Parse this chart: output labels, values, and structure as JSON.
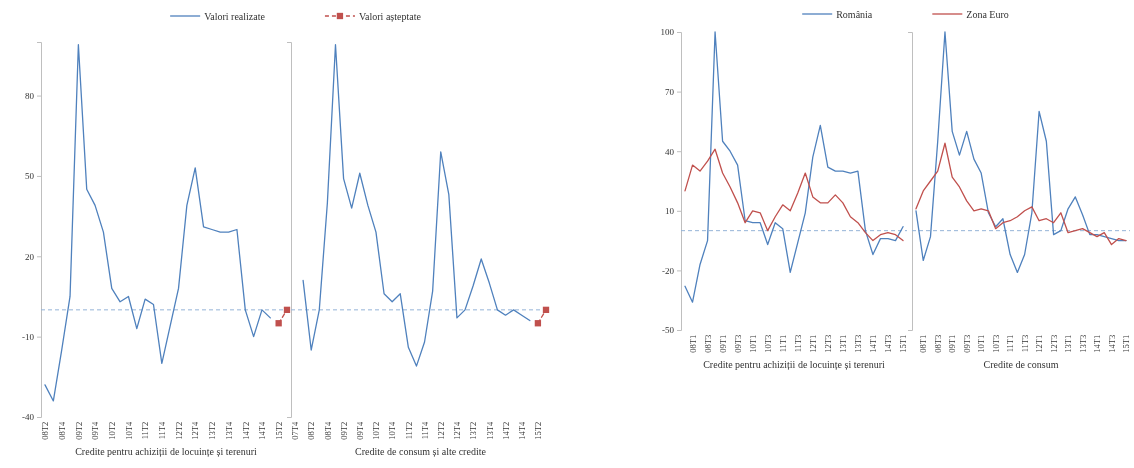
{
  "chart_data": [
    {
      "type": "line",
      "xlabel": "Credite pentru achiziții de locuințe și terenuri",
      "categories": [
        "08T2",
        null,
        "08T4",
        null,
        "09T2",
        null,
        "09T4",
        null,
        "10T2",
        null,
        "10T4",
        null,
        "11T2",
        null,
        "11T4",
        null,
        "12T2",
        null,
        "12T4",
        null,
        "13T2",
        null,
        "13T4",
        null,
        "14T2",
        null,
        "14T4",
        null,
        "15T2",
        null
      ],
      "ylim": [
        -40,
        100
      ],
      "yticks": [
        -40,
        -10,
        20,
        50,
        80
      ],
      "legend": "top",
      "ref_lines": [
        {
          "axis": "y",
          "value": 0,
          "color": "#95b3d7",
          "line_style": "dashed"
        }
      ],
      "series": [
        {
          "name": "Valori realizate",
          "color": "#4f81bd",
          "values": [
            -28,
            -34,
            -15,
            5,
            99,
            45,
            39,
            29,
            8,
            3,
            5,
            -7,
            4,
            2,
            -20,
            -6,
            8,
            39,
            53,
            31,
            30,
            29,
            29,
            30,
            0,
            -10,
            0,
            -3,
            null,
            null
          ]
        },
        {
          "name": "Valori așteptate",
          "color": "#c0504d",
          "marker": "square",
          "line_style": "dashed",
          "values": [
            null,
            null,
            null,
            null,
            null,
            null,
            null,
            null,
            null,
            null,
            null,
            null,
            null,
            null,
            null,
            null,
            null,
            null,
            null,
            null,
            null,
            null,
            null,
            null,
            null,
            null,
            null,
            null,
            -5,
            0
          ]
        }
      ]
    },
    {
      "type": "line",
      "xlabel": "Credite de consum și alte credite",
      "categories": [
        "07T4",
        null,
        "08T2",
        null,
        "08T4",
        null,
        "09T2",
        null,
        "09T4",
        null,
        "10T2",
        null,
        "10T4",
        null,
        "11T2",
        null,
        "11T4",
        null,
        "12T2",
        null,
        "12T4",
        null,
        "13T2",
        null,
        "13T4",
        null,
        "14T2",
        null,
        "14T4",
        null,
        "15T2",
        null
      ],
      "ylim": [
        -40,
        100
      ],
      "tick_labels": "x",
      "ref_lines": [
        {
          "axis": "y",
          "value": 0,
          "color": "#95b3d7",
          "line_style": "dashed"
        }
      ],
      "series": [
        {
          "color": "#4f81bd",
          "values": [
            null,
            11,
            -15,
            0,
            40,
            99,
            49,
            38,
            51,
            39,
            29,
            6,
            3,
            6,
            -14,
            -21,
            -12,
            7,
            59,
            43,
            -3,
            0,
            9,
            19,
            10,
            0,
            -2,
            0,
            -2,
            -4,
            null,
            null
          ]
        },
        {
          "color": "#c0504d",
          "marker": "square",
          "line_style": "dashed",
          "values": [
            null,
            null,
            null,
            null,
            null,
            null,
            null,
            null,
            null,
            null,
            null,
            null,
            null,
            null,
            null,
            null,
            null,
            null,
            null,
            null,
            null,
            null,
            null,
            null,
            null,
            null,
            null,
            null,
            null,
            null,
            -5,
            0
          ]
        }
      ]
    },
    {
      "type": "line",
      "xlabel": "Credite pentru achiziții de locuințe și terenuri",
      "categories": [
        null,
        "08T1",
        null,
        "08T3",
        null,
        "09T1",
        null,
        "09T3",
        null,
        "10T1",
        null,
        "10T3",
        null,
        "11T1",
        null,
        "11T3",
        null,
        "12T1",
        null,
        "12T3",
        null,
        "13T1",
        null,
        "13T3",
        null,
        "14T1",
        null,
        "14T3",
        null,
        "15T1"
      ],
      "ylim": [
        -50,
        100
      ],
      "yticks": [
        -50,
        -20,
        10,
        40,
        70,
        100
      ],
      "legend": "top",
      "ref_lines": [
        {
          "axis": "y",
          "value": 0,
          "color": "#95b3d7",
          "line_style": "dashed"
        }
      ],
      "series": [
        {
          "name": "România",
          "color": "#4f81bd",
          "values": [
            -28,
            -36,
            -17,
            -5,
            100,
            45,
            40,
            33,
            5,
            4,
            4,
            -7,
            4,
            1,
            -21,
            -6,
            9,
            37,
            53,
            32,
            30,
            30,
            29,
            30,
            0,
            -12,
            -4,
            -4,
            -5,
            2
          ]
        },
        {
          "name": "Zona Euro",
          "color": "#c0504d",
          "values": [
            20,
            33,
            30,
            35,
            41,
            29,
            22,
            14,
            4,
            10,
            9,
            0,
            7,
            13,
            10,
            19,
            29,
            17,
            14,
            14,
            18,
            14,
            7,
            4,
            -1,
            -5,
            -2,
            -1,
            -2,
            -5
          ]
        }
      ]
    },
    {
      "type": "line",
      "xlabel": "Credite de consum",
      "categories": [
        null,
        "08T1",
        null,
        "08T3",
        null,
        "09T1",
        null,
        "09T3",
        null,
        "10T1",
        null,
        "10T3",
        null,
        "11T1",
        null,
        "11T3",
        null,
        "12T1",
        null,
        "12T3",
        null,
        "13T1",
        null,
        "13T3",
        null,
        "14T1",
        null,
        "14T3",
        null,
        "15T1"
      ],
      "ylim": [
        -50,
        100
      ],
      "tick_labels": "x",
      "ref_lines": [
        {
          "axis": "y",
          "value": 0,
          "color": "#95b3d7",
          "line_style": "dashed"
        }
      ],
      "series": [
        {
          "color": "#4f81bd",
          "values": [
            10,
            -15,
            -3,
            45,
            100,
            50,
            38,
            50,
            36,
            29,
            9,
            2,
            6,
            -12,
            -21,
            -12,
            9,
            60,
            45,
            -2,
            0,
            11,
            17,
            8,
            -2,
            -2,
            -3,
            -4,
            -5,
            -5
          ]
        },
        {
          "color": "#c0504d",
          "values": [
            11,
            20,
            25,
            30,
            44,
            27,
            22,
            15,
            10,
            11,
            10,
            1,
            4,
            5,
            7,
            10,
            12,
            5,
            6,
            4,
            9,
            -1,
            0,
            1,
            -1,
            -3,
            -1,
            -7,
            -4,
            -5
          ]
        }
      ]
    }
  ]
}
